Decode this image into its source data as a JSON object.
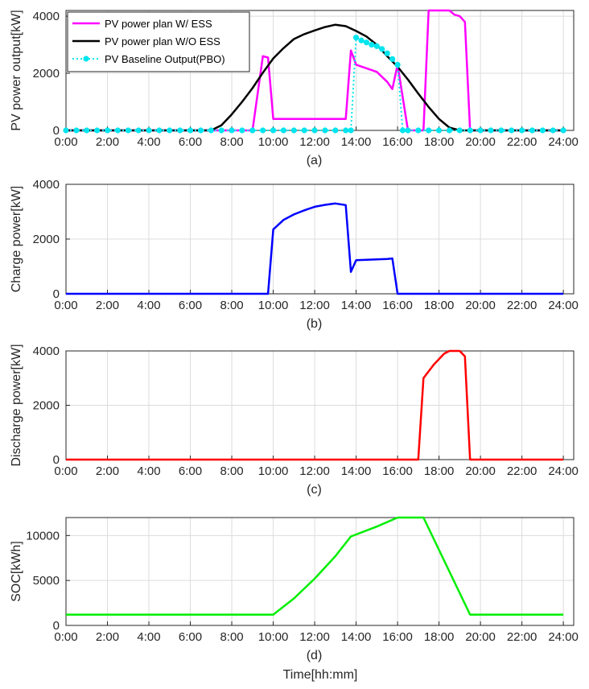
{
  "figure": {
    "xlabel": "Time[hh:mm]"
  },
  "chart_data": [
    {
      "type": "line",
      "subtitle": "(a)",
      "ylabel": "PV power output[kW]",
      "xlim": [
        0,
        24.5
      ],
      "ylim": [
        0,
        4200
      ],
      "yticks": [
        0,
        2000,
        4000
      ],
      "xtick_labels": [
        "0:00",
        "2:00",
        "4:00",
        "6:00",
        "8:00",
        "10:00",
        "12:00",
        "14:00",
        "16:00",
        "18:00",
        "20:00",
        "22:00",
        "24:00"
      ],
      "grid": true,
      "legend_position": "top-left",
      "series": [
        {
          "name": "PV power plan W/ ESS",
          "color": "#ff00ff",
          "style": "solid",
          "x": [
            0,
            7,
            8,
            9,
            9.5,
            9.75,
            10,
            11,
            12,
            13,
            13.5,
            13.75,
            14,
            15,
            15.5,
            15.75,
            16,
            16.5,
            17,
            17.25,
            17.5,
            18,
            18.5,
            18.75,
            19,
            19.25,
            19.5,
            24
          ],
          "y": [
            0,
            0,
            0,
            0,
            2600,
            2550,
            400,
            400,
            400,
            400,
            400,
            2800,
            2300,
            2050,
            1700,
            1450,
            2300,
            0,
            0,
            0,
            4200,
            4200,
            4200,
            4050,
            4000,
            3800,
            0,
            0
          ]
        },
        {
          "name": "PV power plan W/O ESS",
          "color": "#000000",
          "style": "solid",
          "x": [
            0,
            6.5,
            7,
            7.5,
            8,
            8.5,
            9,
            9.5,
            10,
            10.5,
            11,
            11.5,
            12,
            12.5,
            13,
            13.5,
            14,
            14.5,
            15,
            15.5,
            16,
            16.5,
            17,
            17.5,
            18,
            18.5,
            19,
            19.5,
            24
          ],
          "y": [
            0,
            0,
            0,
            180,
            560,
            1000,
            1480,
            2020,
            2520,
            2880,
            3200,
            3370,
            3500,
            3620,
            3700,
            3650,
            3480,
            3290,
            3000,
            2600,
            2230,
            1780,
            1290,
            820,
            400,
            100,
            0,
            0,
            0
          ]
        },
        {
          "name": "PV Baseline Output(PBO)",
          "color": "#00e5ee",
          "style": "dotted-markers",
          "x": [
            0,
            0.5,
            1,
            1.5,
            2,
            2.5,
            3,
            3.5,
            4,
            4.5,
            5,
            5.5,
            6,
            6.5,
            7,
            7.5,
            8,
            8.5,
            9,
            9.5,
            10,
            10.5,
            11,
            11.5,
            12,
            12.5,
            13,
            13.5,
            13.75,
            14,
            14.25,
            14.5,
            14.75,
            15,
            15.25,
            15.5,
            15.75,
            16,
            16.25,
            16.5,
            17,
            17.5,
            18,
            18.5,
            19,
            19.5,
            20,
            20.5,
            21,
            21.5,
            22,
            22.5,
            23,
            23.5,
            24
          ],
          "y": [
            0,
            0,
            0,
            0,
            0,
            0,
            0,
            0,
            0,
            0,
            0,
            0,
            0,
            0,
            0,
            0,
            0,
            0,
            0,
            0,
            0,
            0,
            0,
            0,
            0,
            0,
            0,
            0,
            0,
            3250,
            3150,
            3080,
            3000,
            2950,
            2850,
            2700,
            2500,
            2300,
            0,
            0,
            0,
            0,
            0,
            0,
            0,
            0,
            0,
            0,
            0,
            0,
            0,
            0,
            0,
            0,
            0
          ]
        }
      ]
    },
    {
      "type": "line",
      "subtitle": "(b)",
      "ylabel": "Charge power[kW]",
      "xlim": [
        0,
        24.5
      ],
      "ylim": [
        0,
        4000
      ],
      "yticks": [
        0,
        2000,
        4000
      ],
      "xtick_labels": [
        "0:00",
        "2:00",
        "4:00",
        "6:00",
        "8:00",
        "10:00",
        "12:00",
        "14:00",
        "16:00",
        "18:00",
        "20:00",
        "22:00",
        "24:00"
      ],
      "grid": true,
      "series": [
        {
          "color": "#0000ff",
          "x": [
            0,
            9.75,
            10,
            10.5,
            11,
            11.5,
            12,
            12.5,
            13,
            13.5,
            13.75,
            14,
            15,
            15.5,
            15.75,
            16,
            24
          ],
          "y": [
            0,
            0,
            2350,
            2700,
            2900,
            3050,
            3180,
            3250,
            3300,
            3240,
            800,
            1230,
            1260,
            1270,
            1290,
            0,
            0
          ]
        }
      ]
    },
    {
      "type": "line",
      "subtitle": "(c)",
      "ylabel": "Discharge power[kW]",
      "xlim": [
        0,
        24.5
      ],
      "ylim": [
        0,
        4000
      ],
      "yticks": [
        0,
        2000,
        4000
      ],
      "xtick_labels": [
        "0:00",
        "2:00",
        "4:00",
        "6:00",
        "8:00",
        "10:00",
        "12:00",
        "14:00",
        "16:00",
        "18:00",
        "20:00",
        "22:00",
        "24:00"
      ],
      "grid": true,
      "series": [
        {
          "color": "#ff0000",
          "x": [
            0,
            17,
            17.25,
            17.75,
            18.25,
            18.5,
            18.75,
            19,
            19.25,
            19.5,
            24
          ],
          "y": [
            0,
            0,
            3000,
            3500,
            3900,
            4000,
            4000,
            4000,
            3800,
            0,
            0
          ]
        }
      ]
    },
    {
      "type": "line",
      "subtitle": "(d)",
      "ylabel": "SOC[kWh]",
      "xlim": [
        0,
        24.5
      ],
      "ylim": [
        0,
        12000
      ],
      "yticks": [
        0,
        5000,
        10000
      ],
      "xtick_labels": [
        "0:00",
        "2:00",
        "4:00",
        "6:00",
        "8:00",
        "10:00",
        "12:00",
        "14:00",
        "16:00",
        "18:00",
        "20:00",
        "22:00",
        "24:00"
      ],
      "grid": true,
      "series": [
        {
          "color": "#00ee00",
          "x": [
            0,
            10,
            11,
            12,
            13,
            13.75,
            15,
            16,
            16.5,
            17,
            17.25,
            19.5,
            24
          ],
          "y": [
            1200,
            1200,
            3000,
            5200,
            7700,
            9900,
            11000,
            12000,
            12000,
            12000,
            12000,
            1200,
            1200
          ]
        }
      ]
    }
  ]
}
